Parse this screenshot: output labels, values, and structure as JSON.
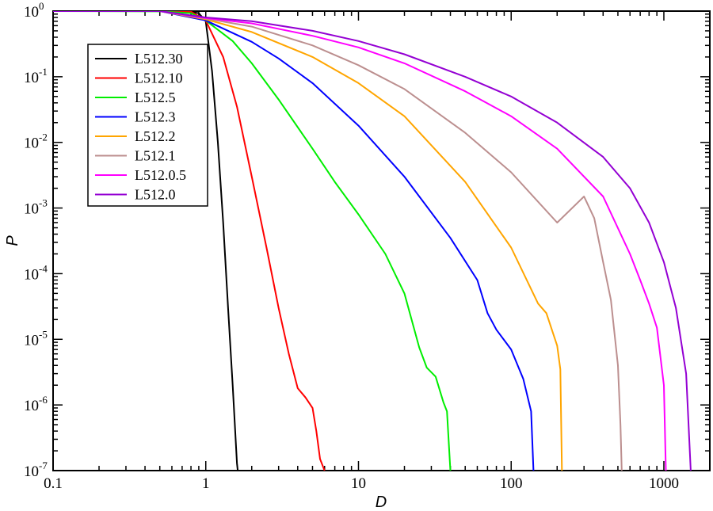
{
  "chart_data": {
    "type": "line",
    "title": "",
    "xlabel": "D",
    "ylabel": "P",
    "x_scale": "log",
    "y_scale": "log",
    "xlim": [
      0.1,
      2000
    ],
    "ylim": [
      1e-07,
      1
    ],
    "grid": false,
    "legend_position": "top-left",
    "x_ticks": [
      {
        "value": 0.1,
        "label": "0.1"
      },
      {
        "value": 1,
        "label": "1"
      },
      {
        "value": 10,
        "label": "10"
      },
      {
        "value": 100,
        "label": "100"
      },
      {
        "value": 1000,
        "label": "1000"
      }
    ],
    "y_ticks": [
      {
        "value": 1,
        "base": "10",
        "exp": "0"
      },
      {
        "value": 0.1,
        "base": "10",
        "exp": "-1"
      },
      {
        "value": 0.01,
        "base": "10",
        "exp": "-2"
      },
      {
        "value": 0.001,
        "base": "10",
        "exp": "-3"
      },
      {
        "value": 0.0001,
        "base": "10",
        "exp": "-4"
      },
      {
        "value": 1e-05,
        "base": "10",
        "exp": "-5"
      },
      {
        "value": 1e-06,
        "base": "10",
        "exp": "-6"
      },
      {
        "value": 1e-07,
        "base": "10",
        "exp": "-7"
      }
    ],
    "series": [
      {
        "name": "L512.30",
        "color": "#000000",
        "x": [
          0.1,
          0.5,
          0.75,
          0.9,
          1.0,
          1.1,
          1.2,
          1.3,
          1.4,
          1.5,
          1.6,
          1.62
        ],
        "y": [
          1,
          1,
          0.99,
          0.93,
          0.7,
          0.12,
          0.01,
          0.0006,
          3e-05,
          2e-06,
          1.3e-07,
          1e-07
        ]
      },
      {
        "name": "L512.10",
        "color": "#ff0000",
        "x": [
          0.1,
          0.5,
          0.8,
          1.0,
          1.3,
          1.6,
          2.0,
          2.5,
          3.0,
          3.5,
          4.0,
          4.5,
          5.0,
          5.3,
          5.6,
          6.0
        ],
        "y": [
          1,
          1,
          0.98,
          0.72,
          0.2,
          0.035,
          0.003,
          0.00025,
          3e-05,
          6e-06,
          1.8e-06,
          1.3e-06,
          9e-07,
          4e-07,
          1.5e-07,
          1e-07
        ]
      },
      {
        "name": "L512.5",
        "color": "#00ee00",
        "x": [
          0.1,
          0.5,
          0.8,
          1.0,
          1.5,
          2.0,
          3.0,
          5.0,
          7.0,
          10,
          15,
          20,
          25,
          28,
          32,
          36,
          38,
          40
        ],
        "y": [
          1,
          0.99,
          0.93,
          0.72,
          0.35,
          0.16,
          0.045,
          0.008,
          0.0025,
          0.0008,
          0.0002,
          5e-05,
          7.5e-06,
          3.7e-06,
          2.7e-06,
          1.1e-06,
          8e-07,
          1e-07
        ]
      },
      {
        "name": "L512.3",
        "color": "#0000ff",
        "x": [
          0.1,
          0.5,
          1.0,
          2.0,
          3.0,
          5.0,
          10,
          20,
          40,
          60,
          70,
          80,
          100,
          120,
          135,
          140
        ],
        "y": [
          1,
          1,
          0.72,
          0.34,
          0.19,
          0.08,
          0.018,
          0.003,
          0.00035,
          8e-05,
          2.5e-05,
          1.4e-05,
          7e-06,
          2.5e-06,
          8e-07,
          1e-07
        ]
      },
      {
        "name": "L512.2",
        "color": "#ffa500",
        "x": [
          0.1,
          0.5,
          1.0,
          2.0,
          5.0,
          10,
          20,
          50,
          100,
          150,
          170,
          200,
          210,
          215
        ],
        "y": [
          1,
          1,
          0.75,
          0.48,
          0.2,
          0.08,
          0.025,
          0.0025,
          0.00025,
          3.5e-05,
          2.5e-05,
          8e-06,
          3.5e-06,
          1e-07
        ]
      },
      {
        "name": "L512.1",
        "color": "#bc8f8f",
        "x": [
          0.1,
          0.5,
          1.0,
          2.0,
          5.0,
          10,
          20,
          50,
          100,
          200,
          300,
          350,
          400,
          450,
          500,
          520,
          530
        ],
        "y": [
          1,
          1,
          0.77,
          0.58,
          0.3,
          0.15,
          0.065,
          0.014,
          0.0035,
          0.0006,
          0.0015,
          0.0007,
          0.00015,
          4e-05,
          4e-06,
          5e-07,
          1e-07
        ]
      },
      {
        "name": "L512.0.5",
        "color": "#ff00ff",
        "x": [
          0.1,
          0.5,
          1.0,
          2.0,
          5.0,
          10,
          20,
          50,
          100,
          200,
          400,
          600,
          700,
          800,
          900,
          1000,
          1030
        ],
        "y": [
          1,
          1,
          0.78,
          0.65,
          0.42,
          0.28,
          0.16,
          0.06,
          0.025,
          0.008,
          0.0015,
          0.0002,
          8e-05,
          3.5e-05,
          1.5e-05,
          2e-06,
          1e-07
        ]
      },
      {
        "name": "L512.0",
        "color": "#9400d3",
        "x": [
          0.1,
          0.5,
          1.0,
          2.0,
          5.0,
          10,
          20,
          50,
          100,
          200,
          400,
          600,
          800,
          1000,
          1200,
          1400,
          1500
        ],
        "y": [
          1,
          1,
          0.8,
          0.7,
          0.5,
          0.35,
          0.22,
          0.1,
          0.05,
          0.02,
          0.006,
          0.002,
          0.0006,
          0.00015,
          3e-05,
          3e-06,
          1e-07
        ]
      }
    ]
  }
}
